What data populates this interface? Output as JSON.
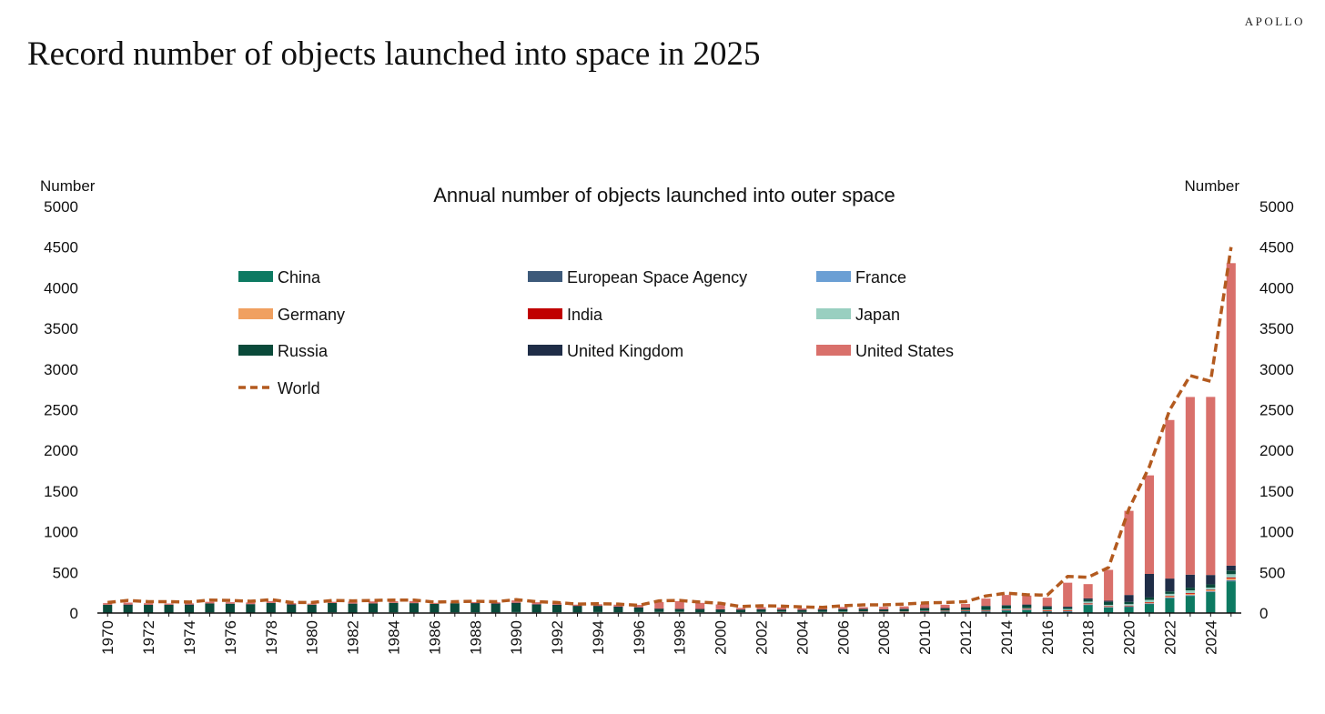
{
  "brand": "APOLLO",
  "title": "Record number of objects launched into space in 2025",
  "chart_data": {
    "type": "bar",
    "title": "Annual number of objects launched into outer space",
    "ylabel_left": "Number",
    "ylabel_right": "Number",
    "ylim": [
      0,
      5000
    ],
    "yticks": [
      0,
      500,
      1000,
      1500,
      2000,
      2500,
      3000,
      3500,
      4000,
      4500,
      5000
    ],
    "stacked": true,
    "legend_position": "upper-left inside plot, 3 columns",
    "years": [
      1970,
      1971,
      1972,
      1973,
      1974,
      1975,
      1976,
      1977,
      1978,
      1979,
      1980,
      1981,
      1982,
      1983,
      1984,
      1985,
      1986,
      1987,
      1988,
      1989,
      1990,
      1991,
      1992,
      1993,
      1994,
      1995,
      1996,
      1997,
      1998,
      1999,
      2000,
      2001,
      2002,
      2003,
      2004,
      2005,
      2006,
      2007,
      2008,
      2009,
      2010,
      2011,
      2012,
      2013,
      2014,
      2015,
      2016,
      2017,
      2018,
      2019,
      2020,
      2021,
      2022,
      2023,
      2024,
      2025
    ],
    "xtick_labels": [
      "1970",
      "1972",
      "1974",
      "1976",
      "1978",
      "1980",
      "1982",
      "1984",
      "1986",
      "1988",
      "1990",
      "1992",
      "1994",
      "1996",
      "1998",
      "2000",
      "2002",
      "2004",
      "2006",
      "2008",
      "2010",
      "2012",
      "2014",
      "2016",
      "2018",
      "2020",
      "2022",
      "2024"
    ],
    "series": [
      {
        "name": "China",
        "color": "#0d7a62",
        "values": [
          1,
          1,
          0,
          0,
          0,
          3,
          3,
          0,
          1,
          0,
          0,
          3,
          1,
          1,
          3,
          1,
          2,
          2,
          4,
          0,
          5,
          1,
          3,
          1,
          5,
          2,
          4,
          6,
          6,
          4,
          5,
          1,
          4,
          7,
          8,
          5,
          6,
          10,
          11,
          6,
          15,
          19,
          22,
          17,
          30,
          37,
          19,
          16,
          98,
          68,
          76,
          111,
          181,
          210,
          258,
          390
        ]
      },
      {
        "name": "European Space Agency",
        "color": "#3d5a7a",
        "values": [
          0,
          0,
          0,
          0,
          0,
          1,
          0,
          1,
          1,
          2,
          0,
          1,
          1,
          2,
          2,
          2,
          1,
          1,
          1,
          2,
          2,
          2,
          2,
          2,
          2,
          3,
          2,
          1,
          3,
          2,
          2,
          2,
          3,
          2,
          1,
          2,
          2,
          2,
          2,
          3,
          2,
          1,
          2,
          3,
          3,
          4,
          3,
          4,
          4,
          3,
          4,
          3,
          5,
          6,
          4,
          8
        ]
      },
      {
        "name": "France",
        "color": "#6b9fd4",
        "values": [
          0,
          1,
          0,
          0,
          1,
          1,
          0,
          1,
          1,
          0,
          0,
          1,
          1,
          1,
          1,
          2,
          1,
          1,
          1,
          1,
          1,
          1,
          1,
          1,
          1,
          2,
          1,
          2,
          2,
          1,
          1,
          2,
          1,
          1,
          2,
          1,
          2,
          2,
          2,
          2,
          2,
          3,
          2,
          3,
          3,
          2,
          2,
          4,
          3,
          3,
          3,
          4,
          5,
          6,
          5,
          8
        ]
      },
      {
        "name": "Germany",
        "color": "#f0a060",
        "values": [
          0,
          0,
          0,
          0,
          1,
          0,
          0,
          0,
          0,
          0,
          0,
          0,
          0,
          0,
          1,
          1,
          0,
          1,
          1,
          1,
          1,
          1,
          1,
          1,
          1,
          1,
          1,
          1,
          1,
          1,
          1,
          2,
          1,
          1,
          1,
          2,
          2,
          3,
          2,
          3,
          3,
          3,
          3,
          4,
          4,
          5,
          4,
          5,
          6,
          6,
          6,
          10,
          12,
          15,
          12,
          20
        ]
      },
      {
        "name": "India",
        "color": "#c00000",
        "values": [
          0,
          0,
          0,
          0,
          0,
          1,
          0,
          0,
          0,
          1,
          1,
          1,
          1,
          1,
          0,
          0,
          0,
          1,
          1,
          0,
          0,
          1,
          1,
          1,
          1,
          0,
          1,
          1,
          0,
          1,
          0,
          1,
          1,
          1,
          0,
          1,
          0,
          1,
          1,
          2,
          2,
          3,
          2,
          3,
          3,
          5,
          6,
          5,
          8,
          6,
          3,
          6,
          8,
          10,
          8,
          12
        ]
      },
      {
        "name": "Japan",
        "color": "#99cfc0",
        "values": [
          1,
          1,
          1,
          2,
          1,
          2,
          2,
          3,
          3,
          2,
          2,
          3,
          2,
          3,
          3,
          2,
          4,
          4,
          3,
          4,
          3,
          3,
          3,
          3,
          2,
          3,
          3,
          2,
          2,
          2,
          2,
          3,
          3,
          4,
          1,
          3,
          5,
          3,
          3,
          5,
          4,
          4,
          7,
          8,
          12,
          8,
          11,
          14,
          22,
          15,
          18,
          28,
          25,
          32,
          26,
          40
        ]
      },
      {
        "name": "Russia",
        "color": "#0a4a3a",
        "values": [
          100,
          100,
          100,
          100,
          100,
          110,
          110,
          105,
          118,
          100,
          100,
          114,
          110,
          110,
          115,
          114,
          105,
          110,
          110,
          108,
          113,
          98,
          90,
          78,
          75,
          66,
          57,
          40,
          35,
          38,
          33,
          30,
          32,
          25,
          25,
          28,
          30,
          29,
          23,
          28,
          30,
          26,
          25,
          45,
          35,
          34,
          27,
          18,
          25,
          36,
          27,
          29,
          30,
          33,
          40,
          45
        ]
      },
      {
        "name": "United Kingdom",
        "color": "#1f2d47",
        "values": [
          0,
          1,
          0,
          0,
          1,
          0,
          0,
          0,
          0,
          1,
          0,
          0,
          0,
          0,
          0,
          0,
          0,
          0,
          1,
          1,
          1,
          1,
          1,
          1,
          1,
          1,
          1,
          1,
          2,
          1,
          2,
          2,
          2,
          2,
          1,
          2,
          2,
          2,
          2,
          3,
          4,
          3,
          4,
          5,
          7,
          10,
          12,
          12,
          15,
          14,
          85,
          290,
          158,
          160,
          115,
          60
        ]
      },
      {
        "name": "United States",
        "color": "#d9706b",
        "values": [
          20,
          25,
          20,
          15,
          15,
          20,
          18,
          20,
          22,
          15,
          13,
          15,
          25,
          25,
          20,
          25,
          12,
          10,
          12,
          15,
          30,
          25,
          25,
          15,
          20,
          25,
          30,
          80,
          95,
          75,
          60,
          20,
          25,
          25,
          20,
          20,
          25,
          20,
          30,
          30,
          45,
          40,
          45,
          90,
          125,
          110,
          105,
          295,
          175,
          380,
          1035,
          1212,
          1950,
          2185,
          2190,
          3720
        ]
      }
    ],
    "line": {
      "name": "World",
      "color": "#b35a1f",
      "dash": "dashed",
      "values": [
        130,
        155,
        140,
        140,
        135,
        160,
        155,
        145,
        165,
        130,
        130,
        155,
        150,
        155,
        160,
        160,
        135,
        140,
        145,
        140,
        165,
        140,
        130,
        110,
        115,
        110,
        95,
        150,
        155,
        135,
        120,
        80,
        90,
        85,
        75,
        70,
        90,
        100,
        100,
        110,
        125,
        130,
        140,
        210,
        245,
        225,
        220,
        450,
        440,
        560,
        1280,
        1800,
        2500,
        2920,
        2850,
        4500
      ]
    }
  }
}
